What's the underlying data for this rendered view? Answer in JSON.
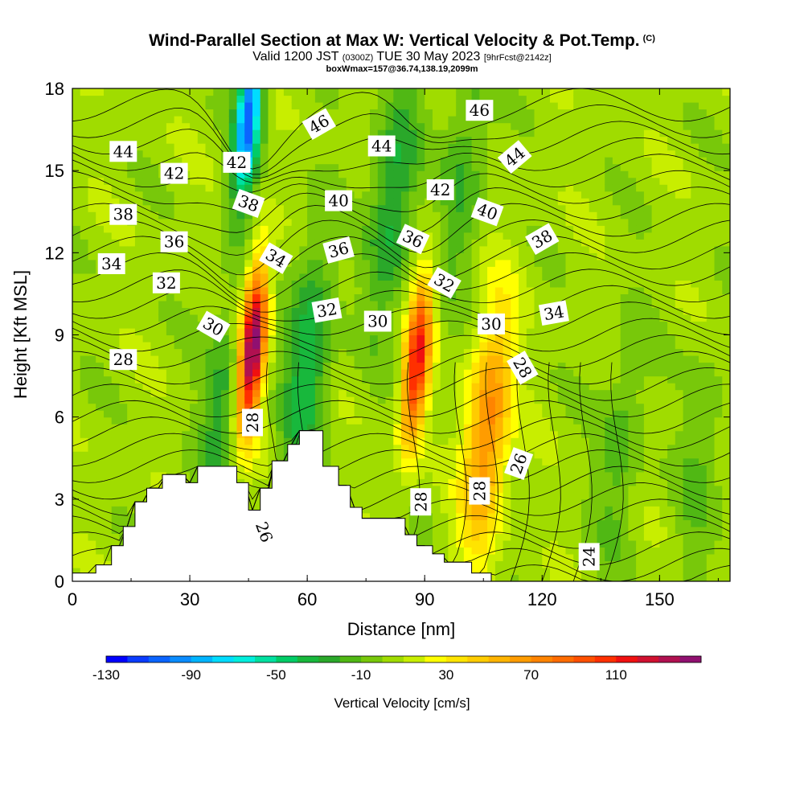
{
  "header": {
    "title": "Wind-Parallel Section at Max W: Vertical Velocity & Pot.Temp.",
    "copyright": "(C)",
    "valid_prefix": "Valid 1200 JST",
    "valid_utc": "(0300Z)",
    "valid_date": "TUE 30 May 2023",
    "forecast": "[9hrFcst@2142z]",
    "box_info": "boxWmax=157@36.74,138.19,2099m"
  },
  "chart_data": {
    "type": "heatmap",
    "xlabel": "Distance [nm]",
    "ylabel": "Height [Kft MSL]",
    "xlim": [
      0,
      168
    ],
    "ylim": [
      0,
      18
    ],
    "x_ticks": [
      "0",
      "30",
      "60",
      "90",
      "120",
      "150"
    ],
    "y_ticks": [
      "0",
      "3",
      "6",
      "9",
      "12",
      "15",
      "18"
    ],
    "colorbar": {
      "title": "Vertical Velocity [cm/s]",
      "min": -130,
      "max": 150,
      "step": 10,
      "tick_labels": [
        "-130",
        "-90",
        "-50",
        "-10",
        "30",
        "70",
        "110"
      ],
      "colors": [
        "#0000ff",
        "#0a3cff",
        "#0a64ff",
        "#0a8cff",
        "#00b4ff",
        "#00dcff",
        "#00eedd",
        "#00e0a0",
        "#00cc66",
        "#18b83c",
        "#2aa82a",
        "#50b814",
        "#78c80a",
        "#a0dc00",
        "#c8ee00",
        "#ffff00",
        "#ffe400",
        "#ffcc00",
        "#ffb400",
        "#ff9c00",
        "#ff8400",
        "#ff6c00",
        "#ff5000",
        "#ff3000",
        "#f01010",
        "#d01030",
        "#b01050",
        "#901070"
      ]
    },
    "velocity_features": [
      {
        "x": 46,
        "z": 8.5,
        "peak": 150
      },
      {
        "x": 88,
        "z": 8.0,
        "peak": 110
      },
      {
        "x": 106,
        "z": 5.5,
        "peak": 70
      },
      {
        "x": 45,
        "z": 17,
        "peak": -110
      },
      {
        "x": 60,
        "z": 8,
        "peak": -45
      },
      {
        "x": 82,
        "z": 14,
        "peak": -40
      },
      {
        "x": 100,
        "z": 15,
        "peak": -25
      },
      {
        "x": 38,
        "z": 6,
        "peak": -30
      },
      {
        "x": 140,
        "z": 5,
        "peak": -20
      },
      {
        "x": 160,
        "z": 4,
        "peak": -15
      }
    ],
    "terrain": [
      [
        0,
        0.3
      ],
      [
        6,
        0.3
      ],
      [
        6,
        0.6
      ],
      [
        10,
        0.6
      ],
      [
        10,
        1.3
      ],
      [
        13,
        1.3
      ],
      [
        13,
        2.0
      ],
      [
        16,
        2.0
      ],
      [
        16,
        2.9
      ],
      [
        19,
        2.9
      ],
      [
        19,
        3.4
      ],
      [
        23,
        3.4
      ],
      [
        23,
        3.9
      ],
      [
        29,
        3.9
      ],
      [
        29,
        3.6
      ],
      [
        32,
        3.6
      ],
      [
        32,
        4.2
      ],
      [
        42,
        4.2
      ],
      [
        42,
        3.6
      ],
      [
        45,
        3.6
      ],
      [
        45,
        2.6
      ],
      [
        48,
        2.6
      ],
      [
        48,
        3.4
      ],
      [
        51,
        3.4
      ],
      [
        51,
        4.4
      ],
      [
        55,
        4.4
      ],
      [
        55,
        5.0
      ],
      [
        58,
        5.0
      ],
      [
        58,
        5.5
      ],
      [
        64,
        5.5
      ],
      [
        64,
        4.2
      ],
      [
        68,
        4.2
      ],
      [
        68,
        3.5
      ],
      [
        71,
        3.5
      ],
      [
        71,
        2.7
      ],
      [
        74,
        2.7
      ],
      [
        74,
        2.3
      ],
      [
        85,
        2.3
      ],
      [
        85,
        1.7
      ],
      [
        88,
        1.7
      ],
      [
        88,
        1.3
      ],
      [
        92,
        1.3
      ],
      [
        92,
        1.0
      ],
      [
        95,
        1.0
      ],
      [
        95,
        0.7
      ],
      [
        102,
        0.7
      ],
      [
        102,
        0.3
      ],
      [
        107,
        0.3
      ],
      [
        107,
        0.0
      ]
    ],
    "contour_labels": [
      {
        "text": "44",
        "x": 13,
        "z": 15.7,
        "rot": 0
      },
      {
        "text": "42",
        "x": 26,
        "z": 14.9,
        "rot": 0
      },
      {
        "text": "42",
        "x": 42,
        "z": 15.3,
        "rot": 0
      },
      {
        "text": "46",
        "x": 63,
        "z": 16.7,
        "rot": -30
      },
      {
        "text": "44",
        "x": 79,
        "z": 15.9,
        "rot": 0
      },
      {
        "text": "46",
        "x": 104,
        "z": 17.2,
        "rot": 0
      },
      {
        "text": "44",
        "x": 113,
        "z": 15.5,
        "rot": -40
      },
      {
        "text": "38",
        "x": 13,
        "z": 13.4,
        "rot": 0
      },
      {
        "text": "36",
        "x": 26,
        "z": 12.4,
        "rot": 0
      },
      {
        "text": "38",
        "x": 45,
        "z": 13.8,
        "rot": 20
      },
      {
        "text": "40",
        "x": 68,
        "z": 13.9,
        "rot": 0
      },
      {
        "text": "42",
        "x": 94,
        "z": 14.3,
        "rot": 0
      },
      {
        "text": "40",
        "x": 106,
        "z": 13.5,
        "rot": 20
      },
      {
        "text": "38",
        "x": 120,
        "z": 12.5,
        "rot": -30
      },
      {
        "text": "34",
        "x": 10,
        "z": 11.6,
        "rot": 0
      },
      {
        "text": "32",
        "x": 24,
        "z": 10.9,
        "rot": 0
      },
      {
        "text": "34",
        "x": 52,
        "z": 11.8,
        "rot": 30
      },
      {
        "text": "36",
        "x": 68,
        "z": 12.1,
        "rot": -15
      },
      {
        "text": "36",
        "x": 87,
        "z": 12.5,
        "rot": 25
      },
      {
        "text": "32",
        "x": 95,
        "z": 10.9,
        "rot": 30
      },
      {
        "text": "30",
        "x": 36,
        "z": 9.3,
        "rot": 30
      },
      {
        "text": "32",
        "x": 65,
        "z": 9.9,
        "rot": -10
      },
      {
        "text": "30",
        "x": 78,
        "z": 9.5,
        "rot": 0
      },
      {
        "text": "30",
        "x": 107,
        "z": 9.4,
        "rot": 0
      },
      {
        "text": "34",
        "x": 123,
        "z": 9.8,
        "rot": -10
      },
      {
        "text": "28",
        "x": 13,
        "z": 8.1,
        "rot": 0
      },
      {
        "text": "28",
        "x": 115,
        "z": 7.8,
        "rot": 60
      },
      {
        "text": "28",
        "x": 46,
        "z": 5.8,
        "rot": -90
      },
      {
        "text": "26",
        "x": 114,
        "z": 4.3,
        "rot": -70
      },
      {
        "text": "28",
        "x": 89,
        "z": 2.9,
        "rot": -90
      },
      {
        "text": "28",
        "x": 104,
        "z": 3.3,
        "rot": -90
      },
      {
        "text": "26",
        "x": 49,
        "z": 1.8,
        "rot": 70
      },
      {
        "text": "24",
        "x": 132,
        "z": 0.9,
        "rot": -90
      }
    ]
  }
}
